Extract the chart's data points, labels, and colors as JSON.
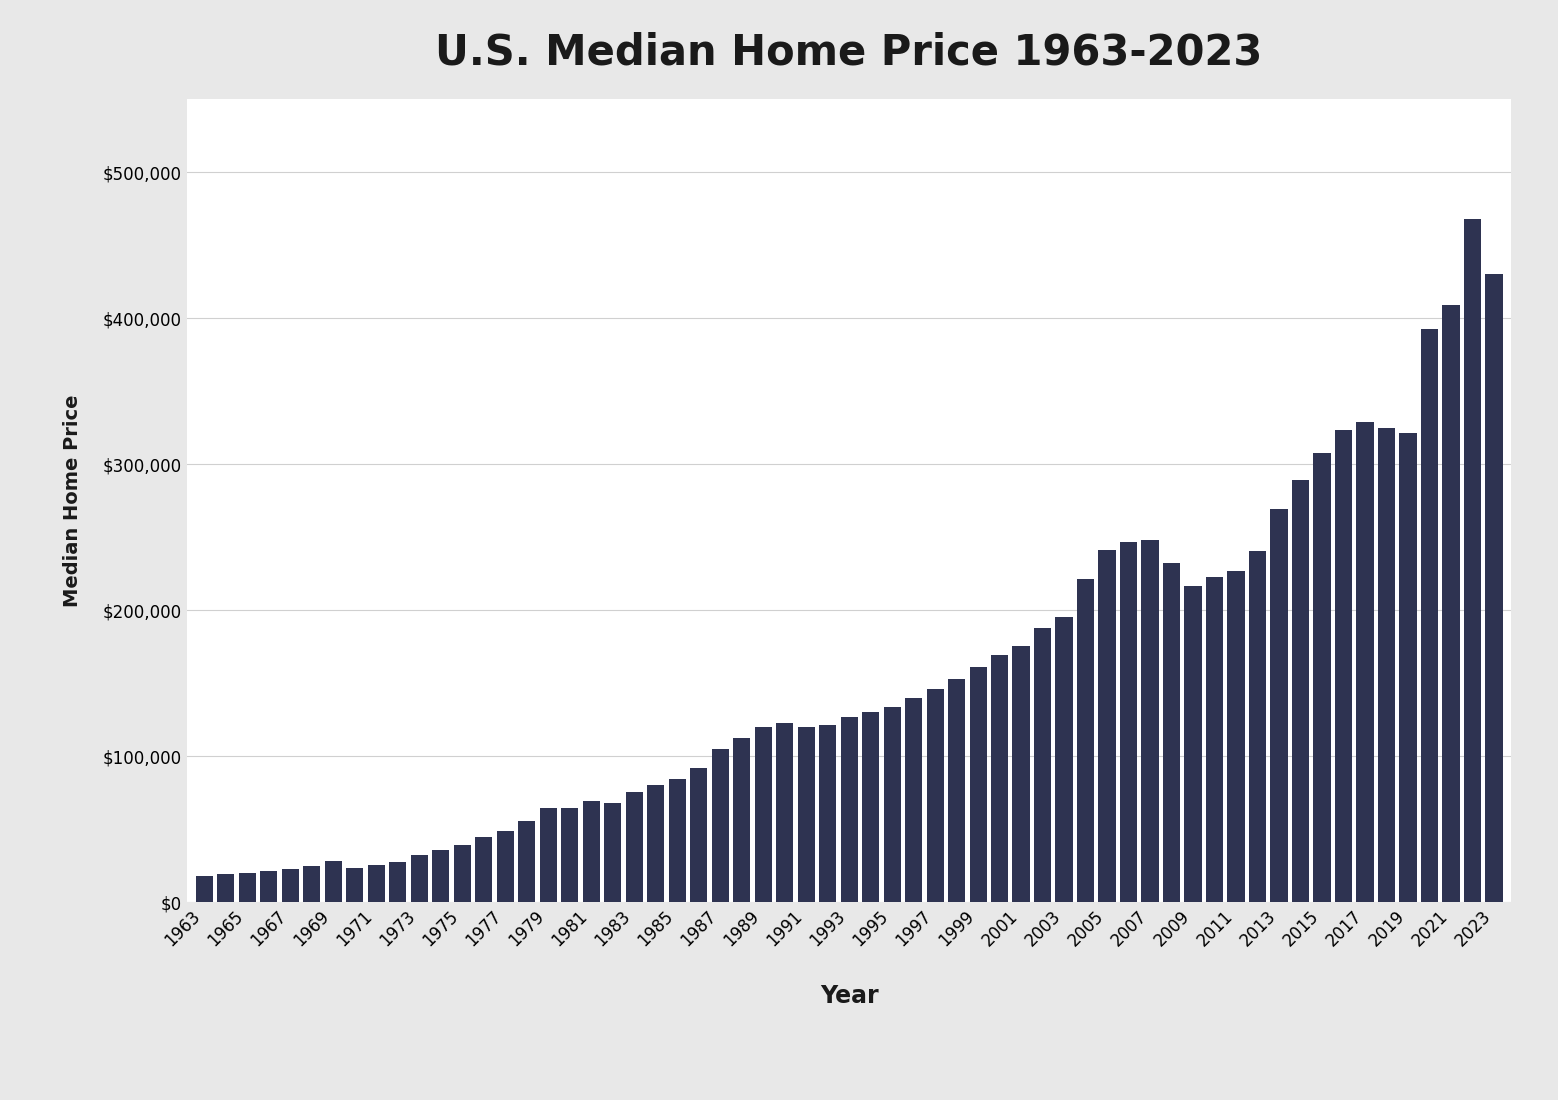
{
  "title": "U.S. Median Home Price 1963-2023",
  "xlabel": "Year",
  "ylabel": "Median Home Price",
  "outer_bg": "#e8e8e8",
  "plot_bg": "#ffffff",
  "bar_color": "#2e3351",
  "years": [
    1963,
    1964,
    1965,
    1966,
    1967,
    1968,
    1969,
    1970,
    1971,
    1972,
    1973,
    1974,
    1975,
    1976,
    1977,
    1978,
    1979,
    1980,
    1981,
    1982,
    1983,
    1984,
    1985,
    1986,
    1987,
    1988,
    1989,
    1990,
    1991,
    1992,
    1993,
    1994,
    1995,
    1996,
    1997,
    1998,
    1999,
    2000,
    2001,
    2002,
    2003,
    2004,
    2005,
    2006,
    2007,
    2008,
    2009,
    2010,
    2011,
    2012,
    2013,
    2014,
    2015,
    2016,
    2017,
    2018,
    2019,
    2020,
    2021,
    2022,
    2023
  ],
  "prices": [
    18000,
    19300,
    20000,
    21400,
    22700,
    24700,
    27900,
    23400,
    25200,
    27600,
    32500,
    35900,
    39000,
    44200,
    48800,
    55700,
    64700,
    64600,
    68900,
    67800,
    75300,
    79900,
    84300,
    92000,
    104500,
    112500,
    120000,
    122900,
    120000,
    121500,
    126500,
    130000,
    133900,
    140000,
    146000,
    152500,
    161000,
    169000,
    175200,
    187600,
    195000,
    220900,
    240900,
    246500,
    247900,
    232100,
    216700,
    222900,
    226700,
    240700,
    268900,
    288900,
    307800,
    323100,
    328700,
    325000,
    321200,
    392700,
    408800,
    468000,
    430000
  ]
}
